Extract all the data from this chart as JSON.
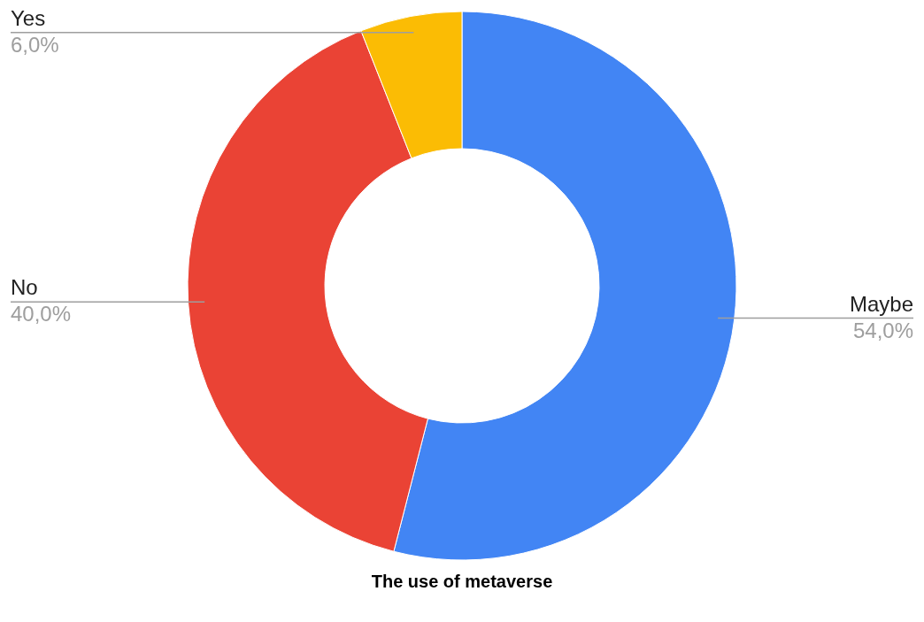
{
  "chart_data": {
    "type": "donut",
    "title": "The use of metaverse",
    "categories": [
      "Maybe",
      "No",
      "Yes"
    ],
    "values": [
      54,
      40,
      6
    ],
    "colors": [
      "#4285f4",
      "#ea4335",
      "#fbbc04"
    ],
    "value_labels": [
      "54,0%",
      "40,0%",
      "6,0%"
    ]
  }
}
